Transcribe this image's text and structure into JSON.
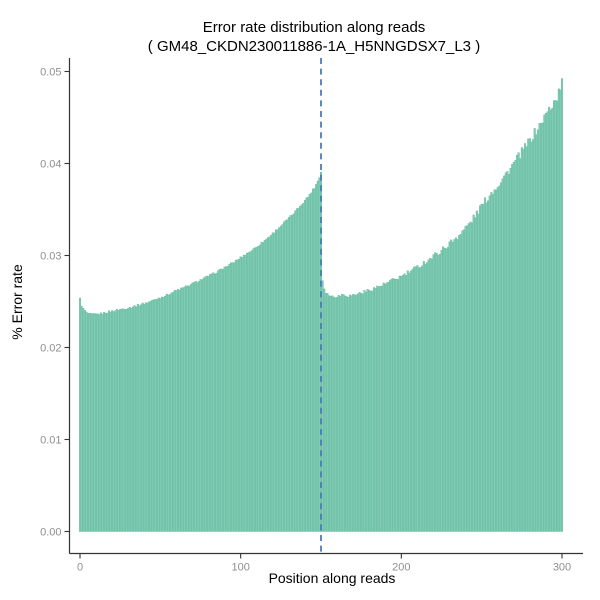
{
  "chart_data": {
    "type": "bar",
    "title": "Error rate distribution along reads",
    "subtitle": "( GM48_CKDN230011886-1A_H5NNGDSX7_L3 )",
    "xlabel": "Position along reads",
    "ylabel": "% Error rate",
    "xlim": [
      0,
      300
    ],
    "ylim": [
      0,
      0.05
    ],
    "grid": "off",
    "legend": "none",
    "x_axis": {
      "ticks": [
        {
          "value": 0,
          "label": "0"
        },
        {
          "value": 100,
          "label": "100"
        },
        {
          "value": 200,
          "label": "200"
        },
        {
          "value": 300,
          "label": "300"
        }
      ]
    },
    "y_axis": {
      "ticks": [
        {
          "value": 0.0,
          "label": "0.00"
        },
        {
          "value": 0.01,
          "label": "0.01"
        },
        {
          "value": 0.02,
          "label": "0.02"
        },
        {
          "value": 0.03,
          "label": "0.03"
        },
        {
          "value": 0.04,
          "label": "0.04"
        },
        {
          "value": 0.05,
          "label": "0.05"
        }
      ]
    },
    "positions": {
      "min": 0,
      "max": 300,
      "step": 1
    },
    "series_anchors": [
      [
        0,
        0.0253
      ],
      [
        1,
        0.0246
      ],
      [
        2,
        0.0242
      ],
      [
        3,
        0.024
      ],
      [
        4,
        0.0238
      ],
      [
        6,
        0.0236
      ],
      [
        10,
        0.0236
      ],
      [
        14,
        0.0237
      ],
      [
        18,
        0.0239
      ],
      [
        24,
        0.0241
      ],
      [
        30,
        0.0243
      ],
      [
        36,
        0.0246
      ],
      [
        42,
        0.0249
      ],
      [
        48,
        0.0253
      ],
      [
        54,
        0.0257
      ],
      [
        60,
        0.0262
      ],
      [
        66,
        0.0266
      ],
      [
        72,
        0.0271
      ],
      [
        78,
        0.0276
      ],
      [
        84,
        0.0281
      ],
      [
        90,
        0.0287
      ],
      [
        96,
        0.0293
      ],
      [
        102,
        0.03
      ],
      [
        108,
        0.0307
      ],
      [
        114,
        0.0315
      ],
      [
        120,
        0.0324
      ],
      [
        126,
        0.0334
      ],
      [
        132,
        0.0344
      ],
      [
        138,
        0.0356
      ],
      [
        142,
        0.0364
      ],
      [
        146,
        0.0374
      ],
      [
        148,
        0.0381
      ],
      [
        149,
        0.0385
      ],
      [
        150,
        0.0391
      ],
      [
        151,
        0.0273
      ],
      [
        152,
        0.0264
      ],
      [
        153,
        0.026
      ],
      [
        155,
        0.0257
      ],
      [
        158,
        0.0255
      ],
      [
        161,
        0.0256
      ],
      [
        164,
        0.0258
      ],
      [
        167,
        0.0256
      ],
      [
        170,
        0.0257
      ],
      [
        174,
        0.0259
      ],
      [
        178,
        0.0261
      ],
      [
        184,
        0.0265
      ],
      [
        190,
        0.0269
      ],
      [
        196,
        0.0274
      ],
      [
        202,
        0.0279
      ],
      [
        208,
        0.0285
      ],
      [
        214,
        0.0292
      ],
      [
        220,
        0.0299
      ],
      [
        226,
        0.0307
      ],
      [
        232,
        0.0316
      ],
      [
        238,
        0.0326
      ],
      [
        244,
        0.0338
      ],
      [
        250,
        0.0354
      ],
      [
        256,
        0.0368
      ],
      [
        262,
        0.0381
      ],
      [
        268,
        0.0395
      ],
      [
        274,
        0.041
      ],
      [
        280,
        0.0425
      ],
      [
        286,
        0.0441
      ],
      [
        291,
        0.0456
      ],
      [
        294,
        0.0464
      ],
      [
        297,
        0.0472
      ],
      [
        299,
        0.0482
      ],
      [
        300,
        0.049
      ]
    ],
    "noise_amplitude": {
      "read1": 0.00012,
      "read2_max": 0.00045
    },
    "vline": {
      "x": 150,
      "style": "dashed",
      "color": "#4d7cba"
    },
    "colors": {
      "bar_fill": "#80ccb3",
      "bar_edge": "#5fb49a",
      "axis_line": "#333333",
      "tick_label": "#8f8f8f",
      "text": "#000000",
      "background": "#ffffff"
    }
  }
}
